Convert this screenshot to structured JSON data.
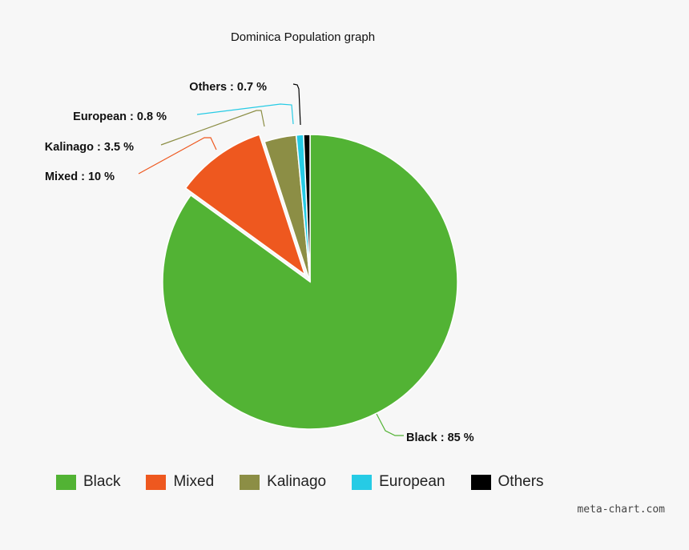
{
  "chart_data": {
    "type": "pie",
    "title": "Dominica Population graph",
    "slices": [
      {
        "name": "Black",
        "value": 85,
        "label": "Black : 85 %",
        "color": "#52b334"
      },
      {
        "name": "Mixed",
        "value": 10,
        "label": "Mixed : 10 %",
        "color": "#ee581f"
      },
      {
        "name": "Kalinago",
        "value": 3.5,
        "label": "Kalinago : 3.5 %",
        "color": "#8c8e45"
      },
      {
        "name": "European",
        "value": 0.8,
        "label": "European : 0.8 %",
        "color": "#26cbe5"
      },
      {
        "name": "Others",
        "value": 0.7,
        "label": "Others : 0.7 %",
        "color": "#000000"
      }
    ],
    "legend_position": "bottom"
  },
  "watermark": "meta-chart.com"
}
